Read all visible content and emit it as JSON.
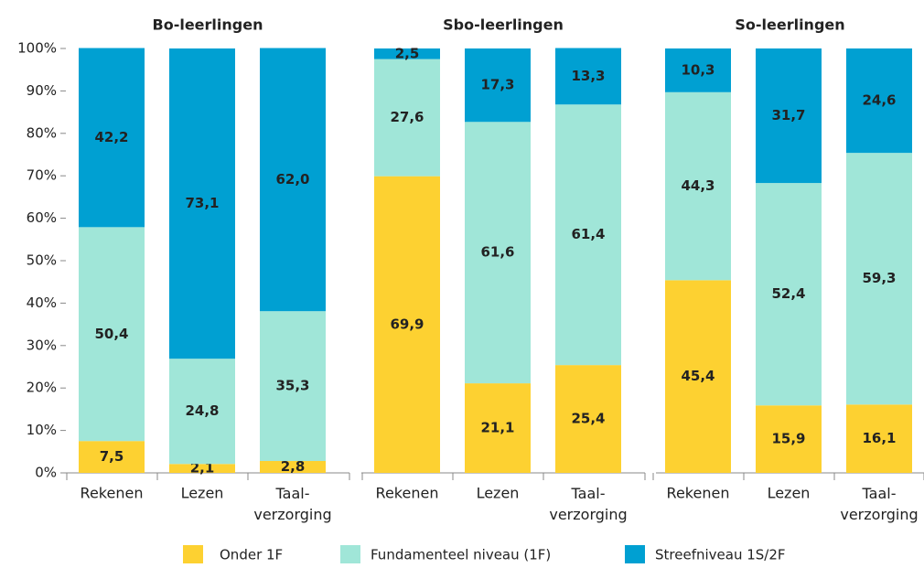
{
  "chart_data": [
    {
      "type": "bar",
      "stacked": true,
      "title": "Bo-leerlingen",
      "categories": [
        "Rekenen",
        "Lezen",
        "Taal-\nverzorging"
      ],
      "ylim": [
        0,
        100
      ],
      "yticks": [
        {
          "value": 0,
          "label": "0%"
        },
        {
          "value": 10,
          "label": "10%"
        },
        {
          "value": 20,
          "label": "20%"
        },
        {
          "value": 30,
          "label": "30%"
        },
        {
          "value": 40,
          "label": "40%"
        },
        {
          "value": 50,
          "label": "50%"
        },
        {
          "value": 60,
          "label": "60%"
        },
        {
          "value": 70,
          "label": "70%"
        },
        {
          "value": 80,
          "label": "80%"
        },
        {
          "value": 90,
          "label": "90%"
        },
        {
          "value": 100,
          "label": "100%"
        }
      ],
      "series": [
        {
          "name": "Onder 1F",
          "color": "#fdd131",
          "values": [
            7.5,
            2.1,
            2.8
          ],
          "value_labels": [
            "7,5",
            "2,1",
            "2,8"
          ]
        },
        {
          "name": "Fundamenteel niveau (1F)",
          "color": "#a0e6d8",
          "values": [
            50.4,
            24.8,
            35.3
          ],
          "value_labels": [
            "50,4",
            "24,8",
            "35,3"
          ]
        },
        {
          "name": "Streefniveau 1S/2F",
          "color": "#00a0d2",
          "values": [
            42.2,
            73.1,
            62.0
          ],
          "value_labels": [
            "42,2",
            "73,1",
            "62,0"
          ]
        }
      ]
    },
    {
      "type": "bar",
      "stacked": true,
      "title": "Sbo-leerlingen",
      "categories": [
        "Rekenen",
        "Lezen",
        "Taal-\nverzorging"
      ],
      "ylim": [
        0,
        100
      ],
      "series": [
        {
          "values": [
            69.9,
            21.1,
            25.4
          ],
          "value_labels": [
            "69,9",
            "21,1",
            "25,4"
          ]
        },
        {
          "values": [
            27.6,
            61.6,
            61.4
          ],
          "value_labels": [
            "27,6",
            "61,6",
            "61,4"
          ]
        },
        {
          "values": [
            2.5,
            17.3,
            13.3
          ],
          "value_labels": [
            "2,5",
            "17,3",
            "13,3"
          ]
        }
      ]
    },
    {
      "type": "bar",
      "stacked": true,
      "title": "So-leerlingen",
      "categories": [
        "Rekenen",
        "Lezen",
        "Taal-\nverzorging"
      ],
      "ylim": [
        0,
        100
      ],
      "series": [
        {
          "values": [
            45.4,
            15.9,
            16.1
          ],
          "value_labels": [
            "45,4",
            "15,9",
            "16,1"
          ]
        },
        {
          "values": [
            44.3,
            52.4,
            59.3
          ],
          "value_labels": [
            "44,3",
            "52,4",
            "59,3"
          ]
        },
        {
          "values": [
            10.3,
            31.7,
            24.6
          ],
          "value_labels": [
            "10,3",
            "31,7",
            "24,6"
          ]
        }
      ]
    }
  ]
}
